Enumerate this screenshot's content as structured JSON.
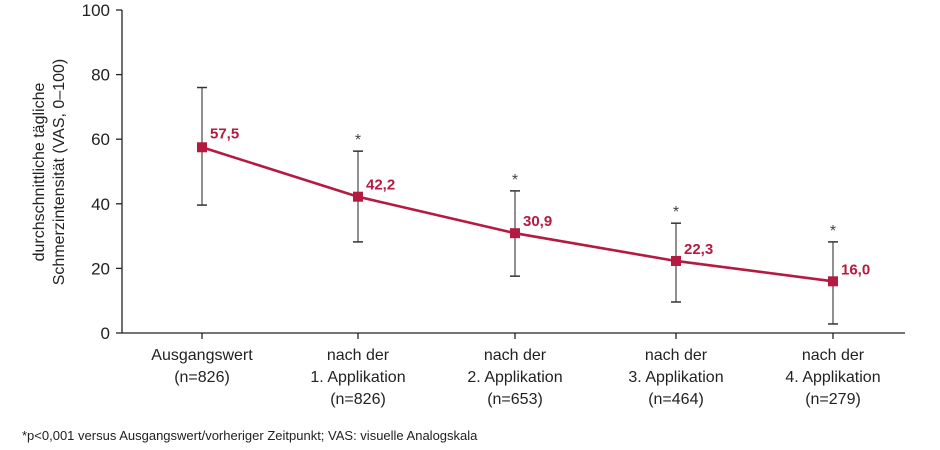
{
  "chart_data": {
    "type": "line",
    "title": "",
    "ylabel": [
      "durchschnittliche tägliche",
      "Schmerzintensität (VAS, 0–100)"
    ],
    "xlabel": "",
    "ylim": [
      0,
      100
    ],
    "yticks": [
      0,
      20,
      40,
      60,
      80,
      100
    ],
    "grid": false,
    "categories": [
      [
        "Ausgangswert",
        "(n=826)"
      ],
      [
        "nach der",
        "1. Applikation",
        "(n=826)"
      ],
      [
        "nach der",
        "2. Applikation",
        "(n=653)"
      ],
      [
        "nach der",
        "3. Applikation",
        "(n=464)"
      ],
      [
        "nach der",
        "4. Applikation",
        "(n=279)"
      ]
    ],
    "series": [
      {
        "values": [
          57.5,
          42.2,
          30.9,
          22.3,
          16.0
        ],
        "value_labels": [
          "57,5",
          "42,2",
          "30,9",
          "22,3",
          "16,0"
        ],
        "error_upper": [
          76,
          56.3,
          44,
          34,
          28.2
        ],
        "error_lower": [
          39.6,
          28.2,
          17.6,
          9.6,
          2.8
        ],
        "significance": [
          "",
          "*",
          "*",
          "*",
          "*"
        ],
        "color": "#b51a40"
      }
    ],
    "footnote": "*p<0,001 versus Ausgangswert/vorheriger Zeitpunkt; VAS: visuelle Analogskala"
  }
}
